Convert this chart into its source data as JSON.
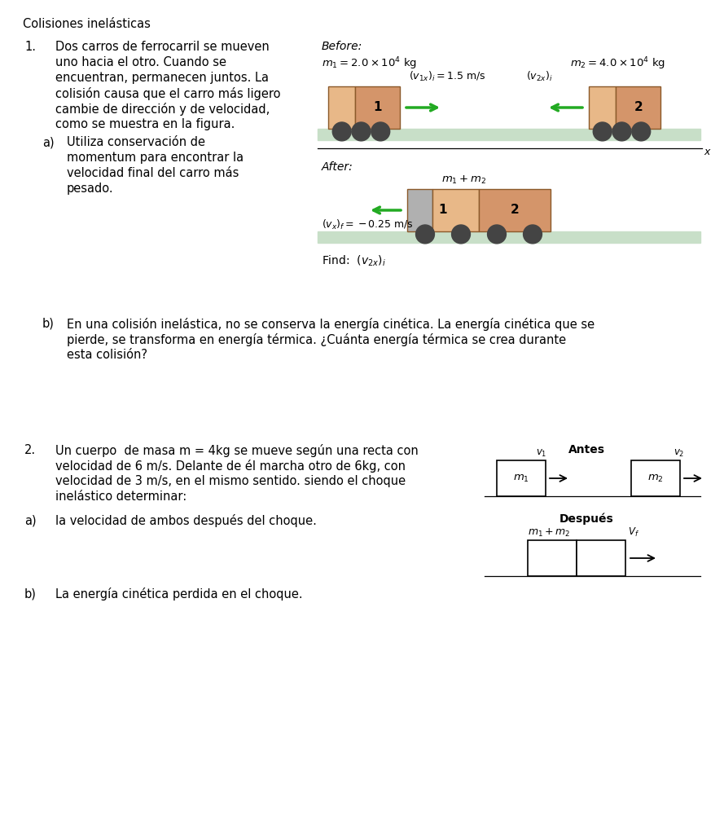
{
  "title": "Colisiones inelásticas",
  "bg_color": "#ffffff",
  "problem1": {
    "number": "1.",
    "text_lines": [
      "Dos carros de ferrocarril se mueven",
      "uno hacia el otro. Cuando se",
      "encuentran, permanecen juntos. La",
      "colisión causa que el carro más ligero",
      "cambie de dirección y de velocidad,",
      "como se muestra en la figura."
    ],
    "sub_a_label": "a)",
    "sub_a_lines": [
      "Utiliza conservación de",
      "momentum para encontrar la",
      "velocidad final del carro más",
      "pesado."
    ],
    "sub_b_label": "b)",
    "sub_b_lines": [
      "En una colisión inelástica, no se conserva la energía cinética. La energía cinética que se",
      "pierde, se transforma en energía térmica. ¿Cuánta energía térmica se crea durante",
      "esta colisión?"
    ]
  },
  "problem2": {
    "number": "2.",
    "text_lines": [
      "Un cuerpo  de masa m = 4kg se mueve según una recta con",
      "velocidad de 6 m/s. Delante de él marcha otro de 6kg, con",
      "velocidad de 3 m/s, en el mismo sentido. siendo el choque",
      "inelástico determinar:"
    ],
    "sub_a_label": "a)",
    "sub_a_text": "la velocidad de ambos después del choque.",
    "sub_b_label": "b)",
    "sub_b_text": "La energía cinética perdida en el choque."
  },
  "diagram1_before": {
    "label": "Before:",
    "m1_label": "$m_1 = 2.0 \\times 10^4$ kg",
    "m2_label": "$m_2 = 4.0 \\times 10^4$ kg",
    "v1_label": "$(v_{1x})_i = 1.5$ m/s",
    "v2_label": "$(v_{2x})_i$",
    "car_color": "#D4956A",
    "car_color_light": "#E8B888",
    "car_border": "#8B5A2B",
    "track_color": "#C8DFC8",
    "wheel_color": "#444444"
  },
  "diagram1_after": {
    "label": "After:",
    "combined_label": "$m_1 + m_2$",
    "vf_label": "$(v_x)_f = -0.25$ m/s",
    "find_label": "Find:  $(v_{2x})_i$",
    "car_color": "#D4956A",
    "car_color_light": "#E8B888",
    "car1_color": "#B0B0B0",
    "car_border": "#8B5A2B",
    "track_color": "#C8DFC8",
    "wheel_color": "#444444"
  },
  "diagram2_before": {
    "label": "Antes",
    "m1_label": "$m_1$",
    "m2_label": "$m_2$",
    "v1_label": "$v_1$",
    "v2_label": "$v_2$"
  },
  "diagram2_after": {
    "label": "Después",
    "combined_label": "$m_1 + m_2$",
    "vf_label": "$V_f$"
  }
}
